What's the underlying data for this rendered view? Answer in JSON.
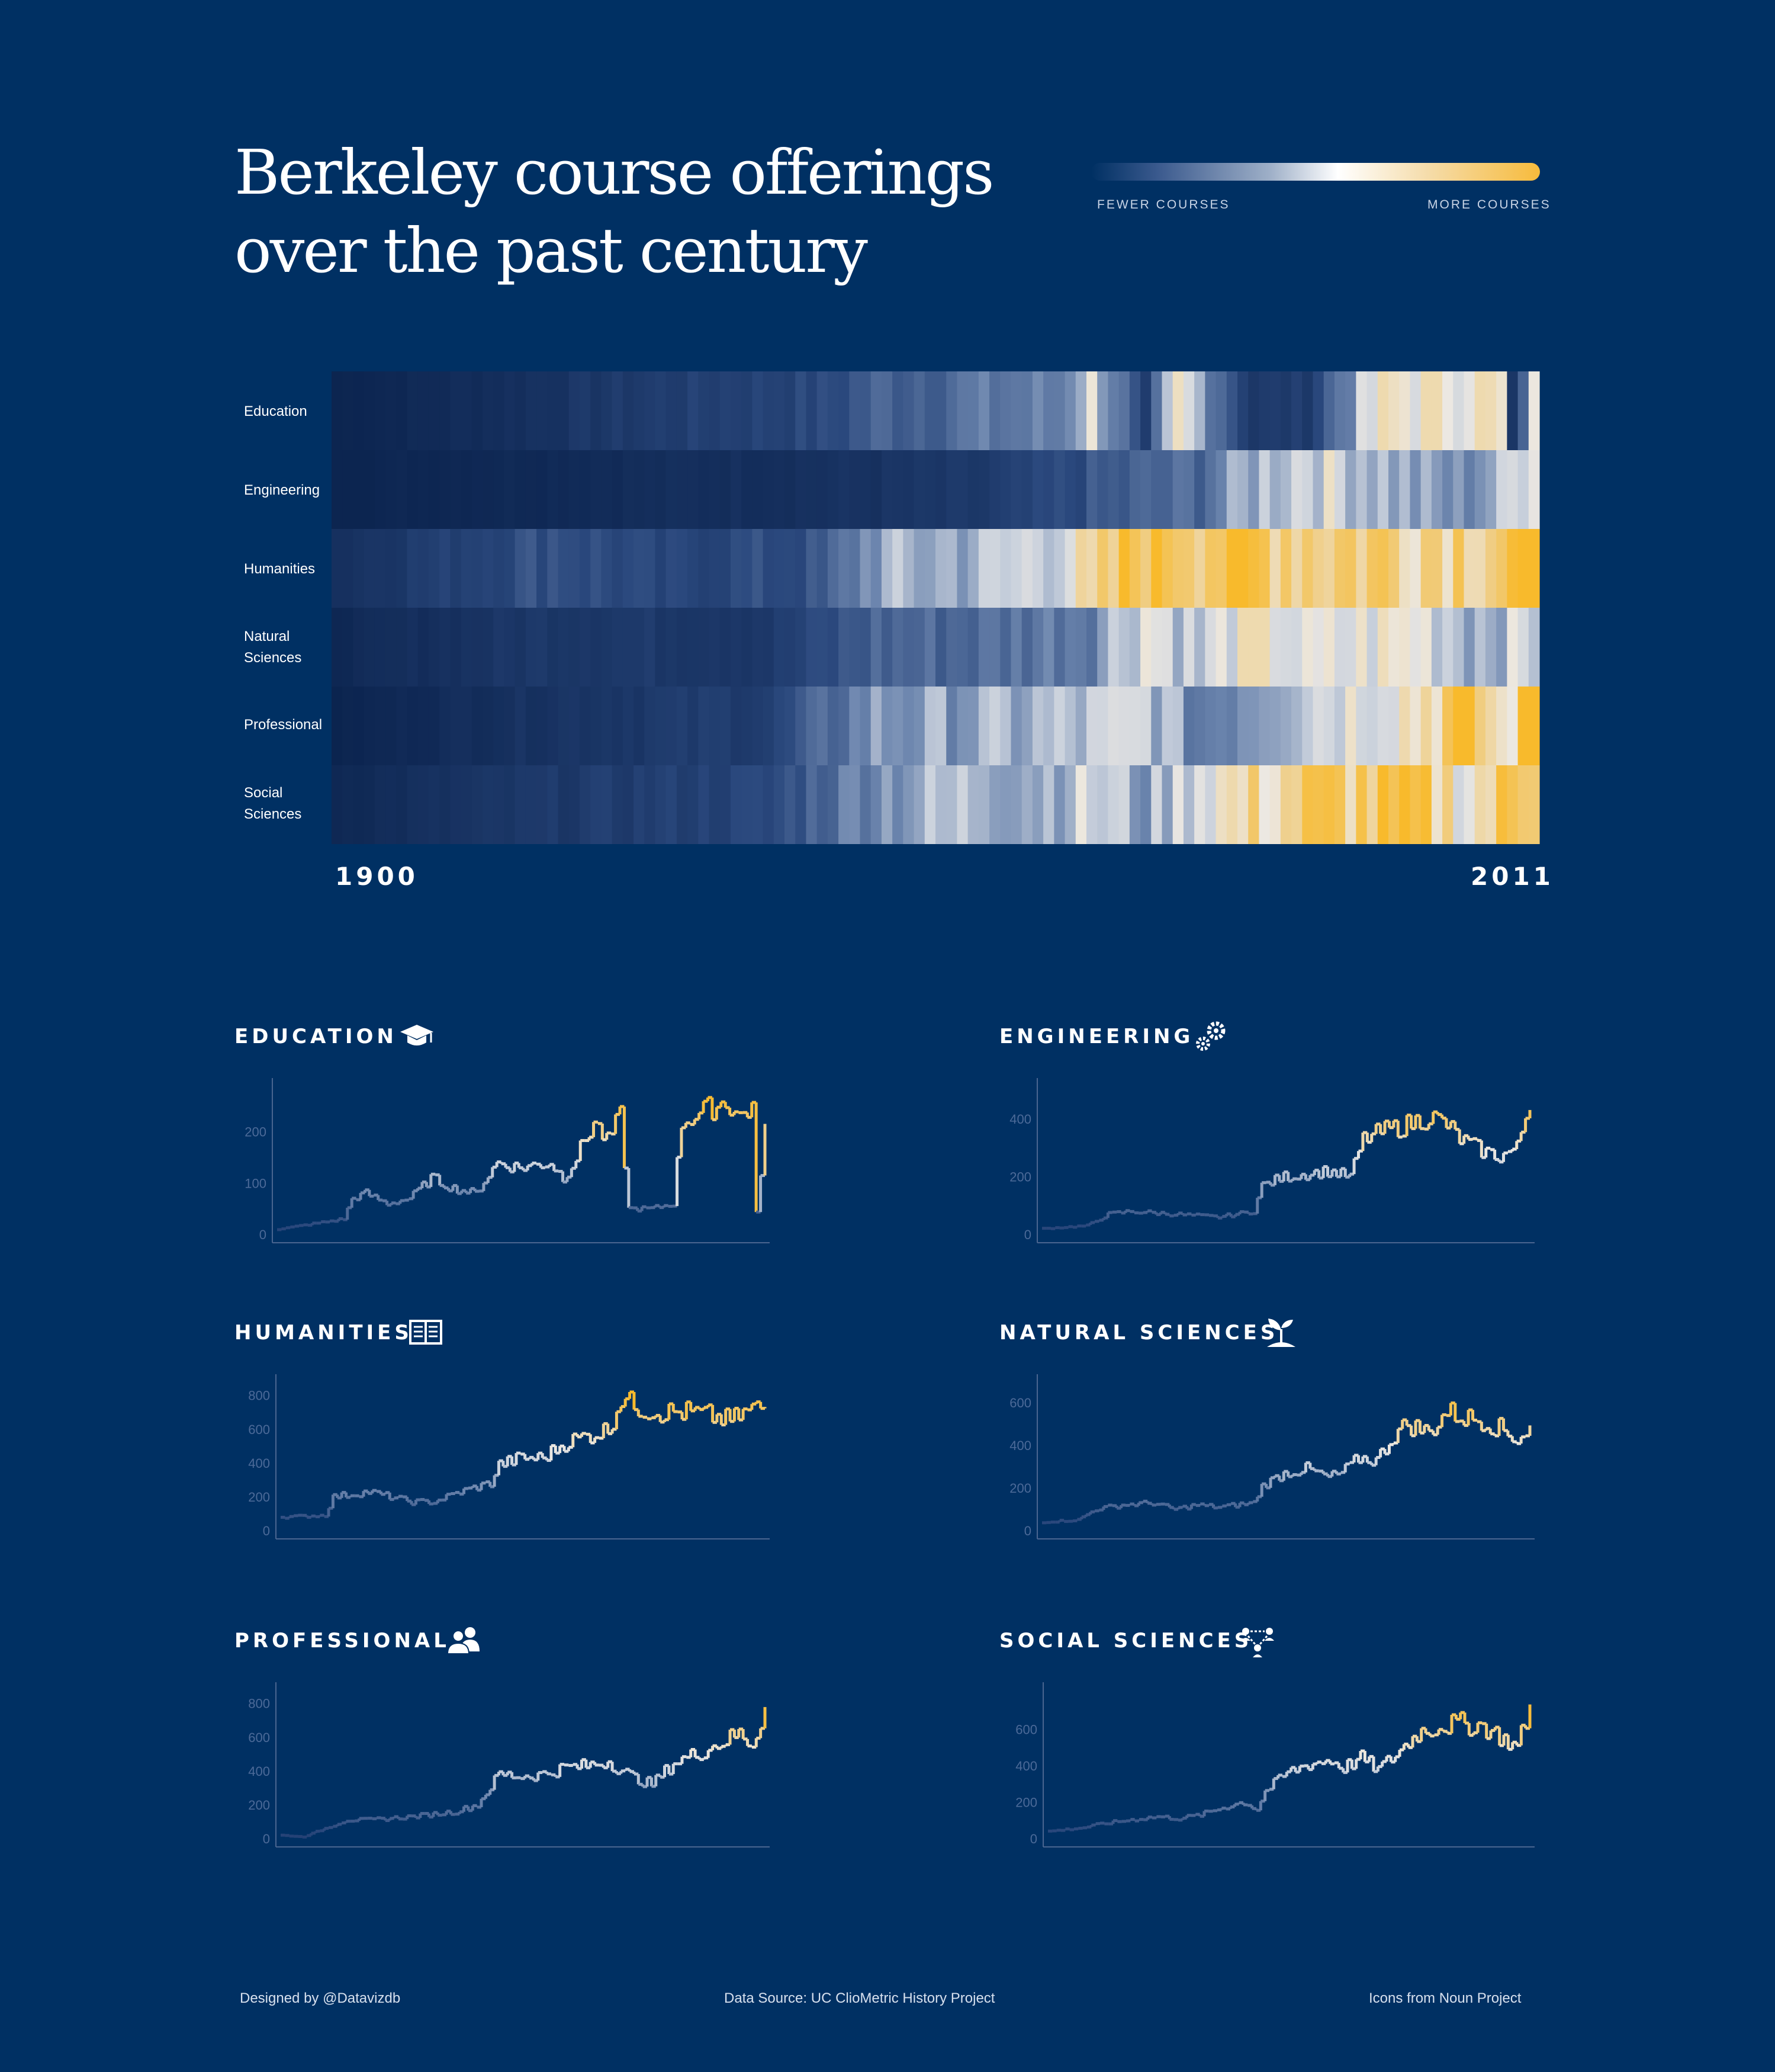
{
  "title": {
    "line1": "Berkeley course offerings",
    "line2": "over the past century"
  },
  "legend": {
    "low_label": "FEWER COURSES",
    "high_label": "MORE COURSES",
    "colors": [
      "#0b2a5c",
      "#9fb0c8",
      "#ffffff",
      "#f7bb3c"
    ]
  },
  "heatmap": {
    "x_start_label": "1900",
    "x_end_label": "2011",
    "rows": [
      "Education",
      "Engineering",
      "Humanities",
      "Natural Sciences",
      "Professional",
      "Social Sciences"
    ],
    "row_label_lines": [
      [
        "Education"
      ],
      [
        "Engineering"
      ],
      [
        "Humanities"
      ],
      [
        "Natural",
        "Sciences"
      ],
      [
        "Professional"
      ],
      [
        "Social",
        "Sciences"
      ]
    ]
  },
  "panels": [
    {
      "title": "EDUCATION",
      "icon": "graduation-cap-icon",
      "ticks": [
        "0",
        "100",
        "200"
      ]
    },
    {
      "title": "ENGINEERING",
      "icon": "gears-icon",
      "ticks": [
        "0",
        "200",
        "400"
      ]
    },
    {
      "title": "HUMANITIES",
      "icon": "open-book-icon",
      "ticks": [
        "0",
        "200",
        "400",
        "600",
        "800"
      ]
    },
    {
      "title": "NATURAL SCIENCES",
      "icon": "sprout-icon",
      "ticks": [
        "0",
        "200",
        "400",
        "600"
      ]
    },
    {
      "title": "PROFESSIONAL",
      "icon": "people-icon",
      "ticks": [
        "0",
        "200",
        "400",
        "600",
        "800"
      ]
    },
    {
      "title": "SOCIAL SCIENCES",
      "icon": "network-people-icon",
      "ticks": [
        "0",
        "200",
        "400",
        "600"
      ]
    }
  ],
  "footer": {
    "designer": "Designed by @Datavizdb",
    "source": "Data Source: UC ClioMetric History Project",
    "icons": "Icons from Noun Project"
  },
  "chart_data": [
    {
      "type": "heatmap",
      "x_range": [
        1900,
        2011
      ],
      "color_scale": "fewer courses (dark navy) to more courses (gold)",
      "rows": [
        {
          "name": "Education",
          "anchors": [
            [
              1900,
              10
            ],
            [
              1915,
              30
            ],
            [
              1930,
              60
            ],
            [
              1945,
              80
            ],
            [
              1950,
              110
            ],
            [
              1960,
              130
            ],
            [
              1967,
              140
            ],
            [
              1970,
              220
            ],
            [
              1975,
              50
            ],
            [
              1978,
              230
            ],
            [
              1985,
              50
            ],
            [
              1990,
              60
            ],
            [
              1997,
              240
            ],
            [
              2005,
              260
            ],
            [
              2008,
              230
            ],
            [
              2009,
              40
            ],
            [
              2011,
              210
            ]
          ]
        },
        {
          "name": "Engineering",
          "anchors": [
            [
              1900,
              20
            ],
            [
              1930,
              50
            ],
            [
              1950,
              70
            ],
            [
              1960,
              90
            ],
            [
              1970,
              170
            ],
            [
              1980,
              220
            ],
            [
              1985,
              330
            ],
            [
              1990,
              400
            ],
            [
              1994,
              370
            ],
            [
              2000,
              300
            ],
            [
              2004,
              270
            ],
            [
              2008,
              330
            ],
            [
              2011,
              470
            ]
          ]
        },
        {
          "name": "Humanities",
          "anchors": [
            [
              1900,
              80
            ],
            [
              1920,
              230
            ],
            [
              1930,
              170
            ],
            [
              1945,
              220
            ],
            [
              1950,
              400
            ],
            [
              1960,
              430
            ],
            [
              1965,
              500
            ],
            [
              1970,
              560
            ],
            [
              1975,
              780
            ],
            [
              1990,
              700
            ],
            [
              2000,
              680
            ],
            [
              2011,
              730
            ]
          ]
        },
        {
          "name": "Natural Sciences",
          "anchors": [
            [
              1900,
              40
            ],
            [
              1920,
              120
            ],
            [
              1940,
              120
            ],
            [
              1950,
              260
            ],
            [
              1960,
              280
            ],
            [
              1970,
              350
            ],
            [
              1975,
              550
            ],
            [
              1980,
              430
            ],
            [
              1985,
              600
            ],
            [
              1990,
              480
            ],
            [
              2000,
              550
            ],
            [
              2005,
              430
            ],
            [
              2011,
              480
            ]
          ]
        },
        {
          "name": "Professional",
          "anchors": [
            [
              1900,
              20
            ],
            [
              1920,
              100
            ],
            [
              1940,
              150
            ],
            [
              1950,
              380
            ],
            [
              1960,
              400
            ],
            [
              1970,
              440
            ],
            [
              1975,
              480
            ],
            [
              1980,
              320
            ],
            [
              1990,
              500
            ],
            [
              2000,
              600
            ],
            [
              2005,
              760
            ],
            [
              2008,
              550
            ],
            [
              2011,
              780
            ]
          ]
        },
        {
          "name": "Social Sciences",
          "anchors": [
            [
              1900,
              40
            ],
            [
              1920,
              110
            ],
            [
              1940,
              170
            ],
            [
              1950,
              350
            ],
            [
              1960,
              420
            ],
            [
              1965,
              390
            ],
            [
              1970,
              450
            ],
            [
              1975,
              360
            ],
            [
              1980,
              500
            ],
            [
              1990,
              620
            ],
            [
              2000,
              640
            ],
            [
              2005,
              520
            ],
            [
              2011,
              720
            ]
          ]
        }
      ]
    },
    {
      "type": "line",
      "title": "EDUCATION",
      "ylim": [
        0,
        270
      ],
      "yticks": [
        0,
        100,
        200
      ],
      "x_range": [
        1900,
        2011
      ],
      "anchors": [
        [
          1900,
          10
        ],
        [
          1915,
          30
        ],
        [
          1917,
          70
        ],
        [
          1920,
          80
        ],
        [
          1925,
          60
        ],
        [
          1930,
          70
        ],
        [
          1935,
          110
        ],
        [
          1940,
          90
        ],
        [
          1945,
          80
        ],
        [
          1950,
          140
        ],
        [
          1955,
          130
        ],
        [
          1962,
          140
        ],
        [
          1965,
          110
        ],
        [
          1968,
          150
        ],
        [
          1972,
          220
        ],
        [
          1975,
          180
        ],
        [
          1978,
          230
        ],
        [
          1980,
          50
        ],
        [
          1985,
          50
        ],
        [
          1990,
          60
        ],
        [
          1992,
          220
        ],
        [
          1997,
          240
        ],
        [
          2002,
          260
        ],
        [
          2005,
          230
        ],
        [
          2008,
          250
        ],
        [
          2009,
          40
        ],
        [
          2011,
          210
        ]
      ]
    },
    {
      "type": "line",
      "title": "ENGINEERING",
      "ylim": [
        0,
        480
      ],
      "yticks": [
        0,
        200,
        400
      ],
      "x_range": [
        1900,
        2011
      ],
      "anchors": [
        [
          1900,
          20
        ],
        [
          1910,
          30
        ],
        [
          1915,
          70
        ],
        [
          1920,
          80
        ],
        [
          1930,
          70
        ],
        [
          1940,
          60
        ],
        [
          1948,
          80
        ],
        [
          1950,
          170
        ],
        [
          1955,
          200
        ],
        [
          1960,
          210
        ],
        [
          1965,
          220
        ],
        [
          1970,
          200
        ],
        [
          1973,
          330
        ],
        [
          1978,
          360
        ],
        [
          1983,
          380
        ],
        [
          1988,
          410
        ],
        [
          1992,
          380
        ],
        [
          1995,
          330
        ],
        [
          2000,
          290
        ],
        [
          2004,
          270
        ],
        [
          2008,
          300
        ],
        [
          2011,
          470
        ]
      ]
    },
    {
      "type": "line",
      "title": "HUMANITIES",
      "ylim": [
        0,
        820
      ],
      "yticks": [
        0,
        200,
        400,
        600,
        800
      ],
      "x_range": [
        1900,
        2011
      ],
      "anchors": [
        [
          1900,
          80
        ],
        [
          1910,
          90
        ],
        [
          1912,
          200
        ],
        [
          1920,
          230
        ],
        [
          1925,
          200
        ],
        [
          1930,
          170
        ],
        [
          1935,
          170
        ],
        [
          1940,
          220
        ],
        [
          1945,
          260
        ],
        [
          1948,
          280
        ],
        [
          1950,
          390
        ],
        [
          1955,
          430
        ],
        [
          1960,
          430
        ],
        [
          1965,
          520
        ],
        [
          1970,
          560
        ],
        [
          1975,
          600
        ],
        [
          1978,
          790
        ],
        [
          1983,
          720
        ],
        [
          1988,
          700
        ],
        [
          1993,
          700
        ],
        [
          1998,
          680
        ],
        [
          2003,
          650
        ],
        [
          2008,
          720
        ],
        [
          2011,
          730
        ]
      ]
    },
    {
      "type": "line",
      "title": "NATURAL SCIENCES",
      "ylim": [
        0,
        650
      ],
      "yticks": [
        0,
        200,
        400,
        600
      ],
      "x_range": [
        1900,
        2011
      ],
      "anchors": [
        [
          1900,
          40
        ],
        [
          1908,
          50
        ],
        [
          1912,
          100
        ],
        [
          1918,
          120
        ],
        [
          1925,
          130
        ],
        [
          1930,
          100
        ],
        [
          1935,
          120
        ],
        [
          1940,
          110
        ],
        [
          1948,
          130
        ],
        [
          1950,
          210
        ],
        [
          1955,
          270
        ],
        [
          1960,
          290
        ],
        [
          1965,
          250
        ],
        [
          1968,
          270
        ],
        [
          1972,
          340
        ],
        [
          1976,
          330
        ],
        [
          1980,
          450
        ],
        [
          1983,
          500
        ],
        [
          1988,
          460
        ],
        [
          1992,
          560
        ],
        [
          1996,
          530
        ],
        [
          2000,
          520
        ],
        [
          2004,
          480
        ],
        [
          2008,
          430
        ],
        [
          2011,
          480
        ]
      ]
    },
    {
      "type": "line",
      "title": "PROFESSIONAL",
      "ylim": [
        0,
        820
      ],
      "yticks": [
        0,
        200,
        400,
        600,
        800
      ],
      "x_range": [
        1900,
        2011
      ],
      "anchors": [
        [
          1900,
          20
        ],
        [
          1905,
          10
        ],
        [
          1910,
          60
        ],
        [
          1915,
          110
        ],
        [
          1920,
          110
        ],
        [
          1930,
          130
        ],
        [
          1940,
          160
        ],
        [
          1945,
          200
        ],
        [
          1950,
          380
        ],
        [
          1955,
          370
        ],
        [
          1960,
          380
        ],
        [
          1965,
          420
        ],
        [
          1970,
          430
        ],
        [
          1975,
          460
        ],
        [
          1980,
          370
        ],
        [
          1985,
          320
        ],
        [
          1990,
          450
        ],
        [
          1995,
          500
        ],
        [
          2000,
          560
        ],
        [
          2005,
          620
        ],
        [
          2008,
          560
        ],
        [
          2011,
          780
        ]
      ]
    },
    {
      "type": "line",
      "title": "SOCIAL SCIENCES",
      "ylim": [
        0,
        760
      ],
      "yticks": [
        0,
        200,
        400,
        600
      ],
      "x_range": [
        1900,
        2011
      ],
      "anchors": [
        [
          1900,
          40
        ],
        [
          1908,
          60
        ],
        [
          1912,
          80
        ],
        [
          1918,
          100
        ],
        [
          1925,
          120
        ],
        [
          1930,
          110
        ],
        [
          1935,
          130
        ],
        [
          1940,
          170
        ],
        [
          1945,
          200
        ],
        [
          1948,
          160
        ],
        [
          1950,
          260
        ],
        [
          1955,
          360
        ],
        [
          1960,
          410
        ],
        [
          1965,
          430
        ],
        [
          1968,
          390
        ],
        [
          1972,
          440
        ],
        [
          1976,
          380
        ],
        [
          1980,
          460
        ],
        [
          1985,
          580
        ],
        [
          1990,
          620
        ],
        [
          1995,
          630
        ],
        [
          2000,
          620
        ],
        [
          2004,
          560
        ],
        [
          2008,
          500
        ],
        [
          2011,
          720
        ]
      ]
    }
  ]
}
